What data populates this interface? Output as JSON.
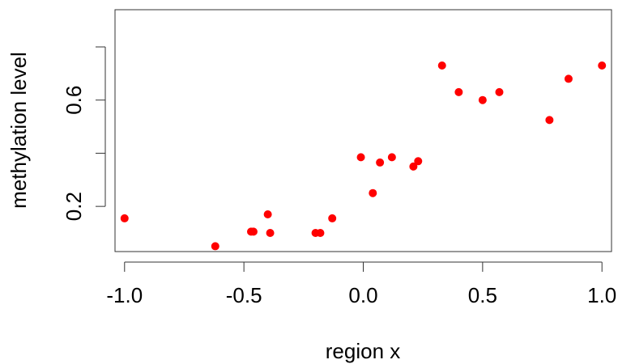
{
  "chart_data": {
    "type": "scatter",
    "title": "",
    "xlabel": "region x",
    "ylabel": "methylation level",
    "xlim": [
      -1.04,
      1.04
    ],
    "ylim": [
      0.03,
      0.94
    ],
    "x_ticks": [
      -1.0,
      -0.5,
      0.0,
      0.5,
      1.0
    ],
    "x_tick_labels": [
      "-1.0",
      "-0.5",
      "0.0",
      "0.5",
      "1.0"
    ],
    "y_ticks": [
      0.2,
      0.4,
      0.6,
      0.8
    ],
    "y_tick_labels": [
      "0.2",
      "",
      "0.6",
      ""
    ],
    "grid": false,
    "point_color": "#ff0000",
    "points": [
      {
        "x": -1.0,
        "y": 0.155
      },
      {
        "x": -0.62,
        "y": 0.05
      },
      {
        "x": -0.47,
        "y": 0.105
      },
      {
        "x": -0.46,
        "y": 0.105
      },
      {
        "x": -0.4,
        "y": 0.17
      },
      {
        "x": -0.39,
        "y": 0.1
      },
      {
        "x": -0.2,
        "y": 0.1
      },
      {
        "x": -0.18,
        "y": 0.1
      },
      {
        "x": -0.13,
        "y": 0.155
      },
      {
        "x": -0.01,
        "y": 0.385
      },
      {
        "x": 0.04,
        "y": 0.25
      },
      {
        "x": 0.07,
        "y": 0.365
      },
      {
        "x": 0.12,
        "y": 0.385
      },
      {
        "x": 0.21,
        "y": 0.35
      },
      {
        "x": 0.23,
        "y": 0.37
      },
      {
        "x": 0.33,
        "y": 0.73
      },
      {
        "x": 0.4,
        "y": 0.63
      },
      {
        "x": 0.5,
        "y": 0.6
      },
      {
        "x": 0.57,
        "y": 0.63
      },
      {
        "x": 0.78,
        "y": 0.525
      },
      {
        "x": 0.86,
        "y": 0.68
      },
      {
        "x": 1.0,
        "y": 0.73
      }
    ]
  }
}
